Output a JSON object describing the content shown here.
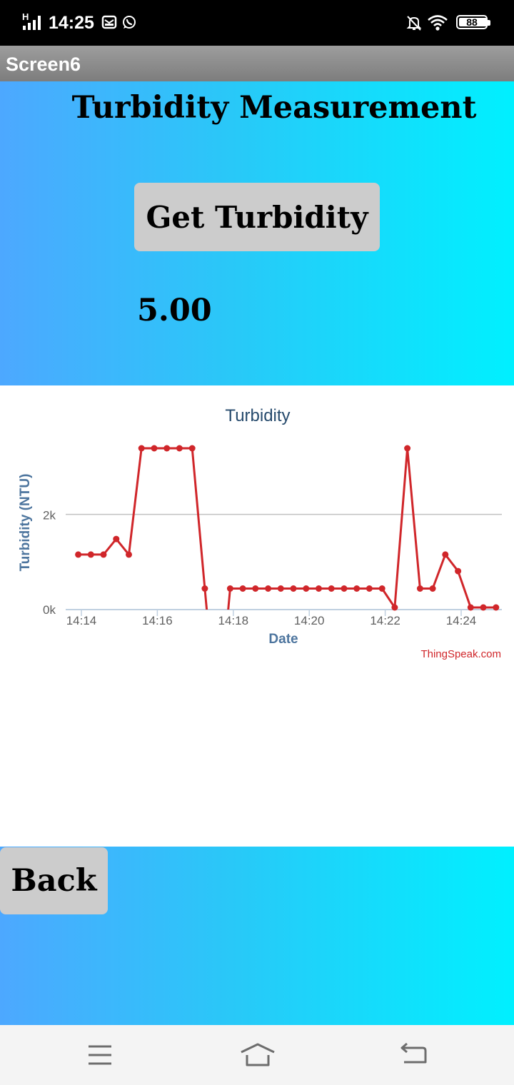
{
  "status_bar": {
    "time": "14:25",
    "network": "H",
    "battery": "88",
    "icons": [
      "signal-icon",
      "message-icon",
      "whatsapp-icon",
      "mute-bell-icon",
      "wifi-icon",
      "battery-icon"
    ]
  },
  "app": {
    "screen_title": "Screen6"
  },
  "main": {
    "heading": "Turbidity Measurement",
    "get_button_label": "Get Turbidity",
    "value": "5.00"
  },
  "bottom": {
    "back_button_label": "Back"
  },
  "nav_bar": {
    "icons": [
      "menu-icon",
      "home-icon",
      "back-arrow-icon"
    ]
  },
  "chart_data": {
    "type": "line",
    "title": "Turbidity",
    "xlabel": "Date",
    "ylabel": "Turbidity (NTU)",
    "attribution": "ThingSpeak.com",
    "x_ticks": [
      "14:14",
      "14:16",
      "14:18",
      "14:20",
      "14:22",
      "14:24"
    ],
    "y_ticks": [
      "0k",
      "2k"
    ],
    "ylim": [
      0,
      3400
    ],
    "series_color": "#d0262a",
    "series": [
      {
        "x": [
          "14:13:55",
          "14:14:15",
          "14:14:35",
          "14:14:55",
          "14:15:15",
          "14:15:35",
          "14:15:55",
          "14:16:15",
          "14:16:35",
          "14:16:55",
          "14:17:15",
          "14:17:35",
          "14:17:55",
          "14:18:15",
          "14:18:35",
          "14:18:55",
          "14:19:15",
          "14:19:35",
          "14:19:55",
          "14:20:15",
          "14:20:35",
          "14:20:55",
          "14:21:15",
          "14:21:35",
          "14:21:55",
          "14:22:15",
          "14:22:35",
          "14:22:55",
          "14:23:15",
          "14:23:35",
          "14:23:55",
          "14:24:15",
          "14:24:35",
          "14:24:55"
        ],
        "values": [
          1150,
          1150,
          1150,
          1480,
          1150,
          3400,
          3400,
          3400,
          3400,
          3400,
          430,
          -2500,
          430,
          430,
          430,
          430,
          430,
          430,
          430,
          430,
          430,
          430,
          430,
          430,
          430,
          30,
          3400,
          430,
          430,
          1150,
          800,
          30,
          30,
          30
        ]
      }
    ]
  }
}
